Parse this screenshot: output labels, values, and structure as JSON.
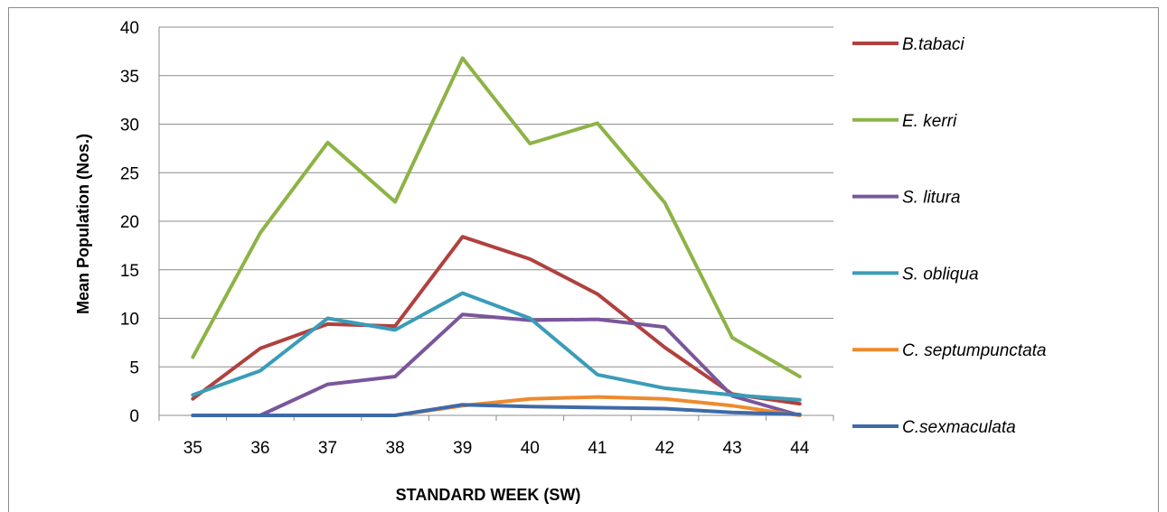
{
  "chart_data": {
    "type": "line",
    "x": [
      35,
      36,
      37,
      38,
      39,
      40,
      41,
      42,
      43,
      44
    ],
    "xlabel": "STANDARD WEEK (SW)",
    "ylabel": "Mean Population (Nos.)",
    "ylim": [
      0,
      40
    ],
    "yticks": [
      0,
      5,
      10,
      15,
      20,
      25,
      30,
      35,
      40
    ],
    "grid": true,
    "legend_position": "right",
    "series": [
      {
        "name": "B.tabaci",
        "color": "#b0413e",
        "values": [
          1.7,
          6.9,
          9.4,
          9.2,
          18.4,
          16.1,
          12.5,
          7.0,
          2.2,
          1.2
        ]
      },
      {
        "name": "E. kerri",
        "color": "#8db346",
        "values": [
          6.0,
          18.8,
          28.1,
          22.0,
          36.8,
          28.0,
          30.1,
          21.9,
          8.0,
          4.0
        ]
      },
      {
        "name": "S. litura",
        "color": "#7a569b",
        "values": [
          0.0,
          0.0,
          3.2,
          4.0,
          10.4,
          9.8,
          9.9,
          9.1,
          2.0,
          0.0
        ]
      },
      {
        "name": "S. obliqua",
        "color": "#3a9cb8",
        "values": [
          2.1,
          4.6,
          10.0,
          8.8,
          12.6,
          10.0,
          4.2,
          2.8,
          2.1,
          1.6
        ]
      },
      {
        "name": "C. septumpunctata",
        "color": "#ee8a2d",
        "values": [
          0.0,
          0.0,
          0.0,
          0.0,
          1.0,
          1.7,
          1.9,
          1.7,
          1.0,
          0.0
        ]
      },
      {
        "name": "C.sexmaculata",
        "color": "#3f6aa8",
        "values": [
          0.0,
          0.0,
          0.0,
          0.0,
          1.1,
          0.9,
          0.8,
          0.7,
          0.3,
          0.1
        ]
      }
    ]
  }
}
